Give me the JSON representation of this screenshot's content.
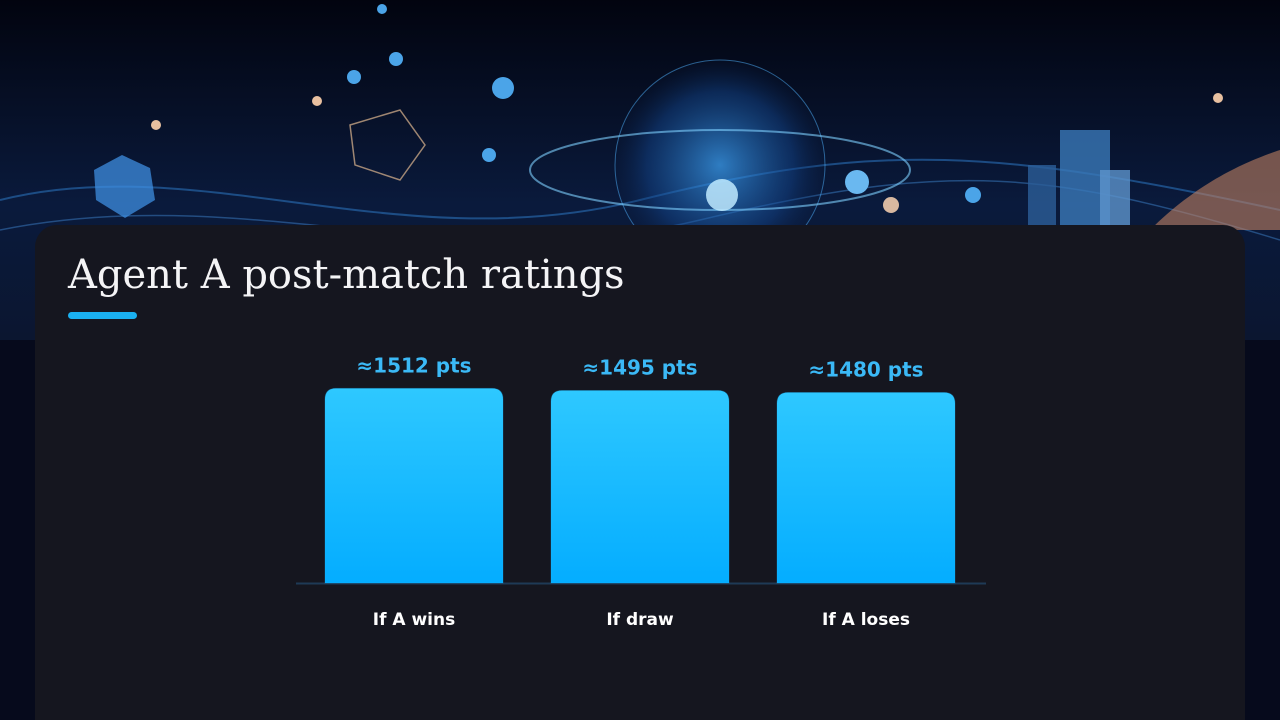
{
  "chart_data": {
    "type": "bar",
    "title": "Agent A post-match ratings",
    "categories": [
      "If A wins",
      "If draw",
      "If A loses"
    ],
    "values": [
      1512,
      1495,
      1480
    ],
    "value_labels": [
      "≈1512 pts",
      "≈1495 pts",
      "≈1480 pts"
    ],
    "color": "#1ab8ff",
    "ylim": [
      0,
      1600
    ]
  }
}
